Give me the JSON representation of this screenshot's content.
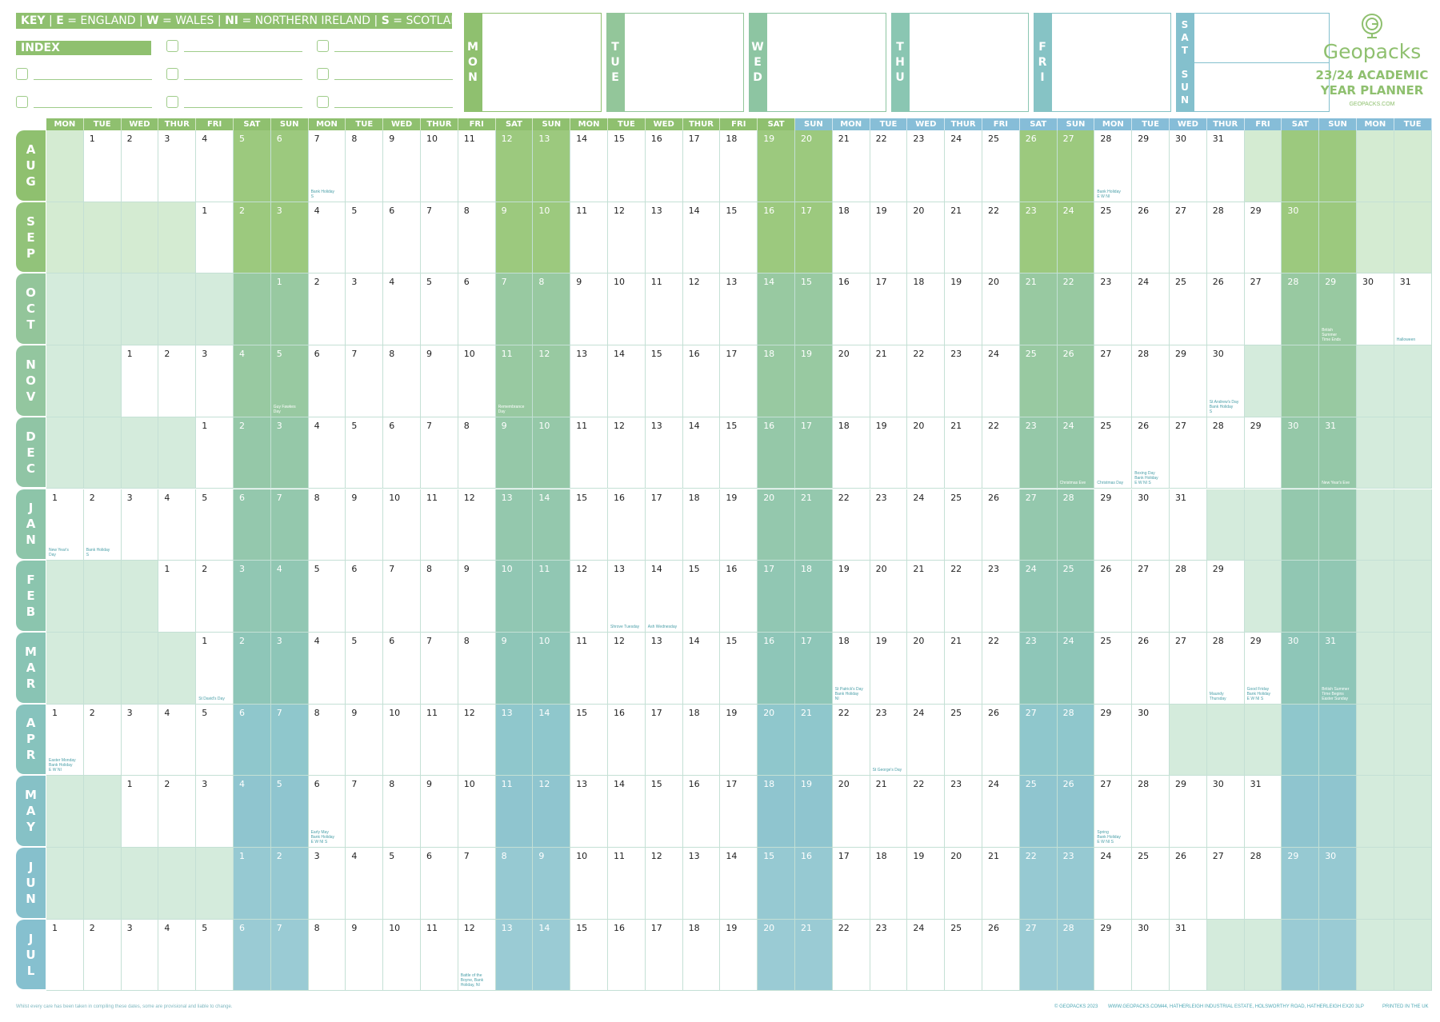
{
  "key": {
    "label": "KEY",
    "items": [
      {
        "code": "E",
        "name": "ENGLAND"
      },
      {
        "code": "W",
        "name": "WALES"
      },
      {
        "code": "NI",
        "name": "NORTHERN IRELAND"
      },
      {
        "code": "S",
        "name": "SCOTLAND"
      }
    ]
  },
  "index_label": "INDEX",
  "week_boxes": [
    {
      "letters": [
        "M",
        "O",
        "N"
      ],
      "color": "#8fc06f"
    },
    {
      "letters": [
        "T",
        "U",
        "E"
      ],
      "color": "#93c69a"
    },
    {
      "letters": [
        "W",
        "E",
        "D"
      ],
      "color": "#8dc5a2"
    },
    {
      "letters": [
        "T",
        "H",
        "U"
      ],
      "color": "#8ac6b2"
    },
    {
      "letters": [
        "F",
        "R",
        "I"
      ],
      "color": "#86c3c5"
    }
  ],
  "weekend_box": {
    "sat": [
      "S",
      "A",
      "T"
    ],
    "sun": [
      "S",
      "U",
      "N"
    ],
    "color": "#84c0cd"
  },
  "logo": {
    "name": "Geopacks",
    "subtitle_line1": "23/24 ACADEMIC",
    "subtitle_line2": "YEAR PLANNER",
    "website": "GEOPACKS.COM",
    "icon": "globe-g-icon"
  },
  "day_headers": [
    "MON",
    "TUE",
    "WED",
    "THUR",
    "FRI",
    "SAT",
    "SUN",
    "MON",
    "TUE",
    "WED",
    "THUR",
    "FRI",
    "SAT",
    "SUN",
    "MON",
    "TUE",
    "WED",
    "THUR",
    "FRI",
    "SAT",
    "SUN",
    "MON",
    "TUE",
    "WED",
    "THUR",
    "FRI",
    "SAT",
    "SUN",
    "MON",
    "TUE",
    "WED",
    "THUR",
    "FRI",
    "SAT",
    "SUN",
    "MON",
    "TUE"
  ],
  "months": [
    {
      "name": "AUG",
      "letters": [
        "A",
        "U",
        "G"
      ],
      "offset": 1,
      "days": 31,
      "color": "#8fc06f",
      "weekend": "#9cc97e",
      "blank": "#d4ebd2",
      "events": {
        "7": "Bank Holiday\nS",
        "28": "Bank Holiday\nE W NI"
      }
    },
    {
      "name": "SEP",
      "letters": [
        "S",
        "E",
        "P"
      ],
      "offset": 4,
      "days": 30,
      "color": "#92c37a",
      "weekend": "#9cc97e",
      "blank": "#d4ebd2",
      "events": {}
    },
    {
      "name": "OCT",
      "letters": [
        "O",
        "C",
        "T"
      ],
      "offset": 6,
      "days": 31,
      "color": "#93c59a",
      "weekend": "#98c9a1",
      "blank": "#d4ebdc",
      "events": {
        "29": "British\nSummer\nTime Ends",
        "31": "Halloween"
      }
    },
    {
      "name": "NOV",
      "letters": [
        "N",
        "O",
        "V"
      ],
      "offset": 2,
      "days": 30,
      "color": "#93c69f",
      "weekend": "#98c9a1",
      "blank": "#d4ebdc",
      "events": {
        "5": "Guy Fawkes\nDay",
        "11": "Remembrance\nDay",
        "30": "St Andrew's Day\nBank Holiday\nS"
      }
    },
    {
      "name": "DEC",
      "letters": [
        "D",
        "E",
        "C"
      ],
      "offset": 4,
      "days": 31,
      "color": "#90c5a5",
      "weekend": "#95c8a8",
      "blank": "#d4ebdc",
      "events": {
        "24": "Christmas Eve",
        "25": "Christmas Day",
        "26": "Boxing Day\nBank Holiday\nE W NI S",
        "31": "New Year's Eve"
      }
    },
    {
      "name": "JAN",
      "letters": [
        "J",
        "A",
        "N"
      ],
      "offset": 0,
      "days": 31,
      "color": "#8dc5a9",
      "weekend": "#94c8ad",
      "blank": "#d4ebdc",
      "events": {
        "1": "New Year's\nDay",
        "2": "Bank Holiday\nS"
      }
    },
    {
      "name": "FEB",
      "letters": [
        "F",
        "E",
        "B"
      ],
      "offset": 3,
      "days": 29,
      "color": "#8bc5ae",
      "weekend": "#91c7b3",
      "blank": "#d4ebdc",
      "events": {
        "13": "Shrove Tuesday",
        "14": "Ash Wednesday"
      }
    },
    {
      "name": "MAR",
      "letters": [
        "M",
        "A",
        "R"
      ],
      "offset": 4,
      "days": 31,
      "color": "#89c4b4",
      "weekend": "#8ec6b8",
      "blank": "#d4ebdc",
      "events": {
        "1": "St David's Day",
        "18": "St Patrick's Day\nBank Holiday\nNI",
        "28": "Maundy\nThursday",
        "29": "Good Friday\nBank Holiday\nE W NI S",
        "31": "British Summer\nTime Begins\nEaster Sunday"
      }
    },
    {
      "name": "APR",
      "letters": [
        "A",
        "P",
        "R"
      ],
      "offset": 0,
      "days": 30,
      "color": "#87c3bd",
      "weekend": "#8fc7cc",
      "blank": "#d4ebdc",
      "events": {
        "1": "Easter Monday\nBank Holiday\nE W NI",
        "23": "St George's Day"
      }
    },
    {
      "name": "MAY",
      "letters": [
        "M",
        "A",
        "Y"
      ],
      "offset": 2,
      "days": 31,
      "color": "#86c1c6",
      "weekend": "#8fc5cf",
      "blank": "#d4ebdc",
      "events": {
        "6": "Early May\nBank Holiday\nE W NI S",
        "27": "Spring\nBank Holiday\nE W NI S"
      }
    },
    {
      "name": "JUN",
      "letters": [
        "J",
        "U",
        "N"
      ],
      "offset": 5,
      "days": 30,
      "color": "#86c0cc",
      "weekend": "#96c9d2",
      "blank": "#d4ebdc",
      "events": {}
    },
    {
      "name": "JUL",
      "letters": [
        "J",
        "U",
        "L"
      ],
      "offset": 0,
      "days": 31,
      "color": "#86c0cf",
      "weekend": "#9acbd4",
      "blank": "#d4ebdc",
      "events": {
        "12": "Battle of the\nBoyne, Bank\nHoliday, NI"
      }
    }
  ],
  "footer": {
    "disclaimer": "Whilst every care has been taken in compiling these dates, some are provisional and liable to change.",
    "copyright": "© GEOPACKS 2023",
    "website": "WWW.GEOPACKS.COM",
    "address": "44, HATHERLEIGH INDUSTRIAL ESTATE, HOLSWORTHY ROAD, HATHERLEIGH EX20 3LP",
    "printed": "PRINTED IN THE UK"
  }
}
